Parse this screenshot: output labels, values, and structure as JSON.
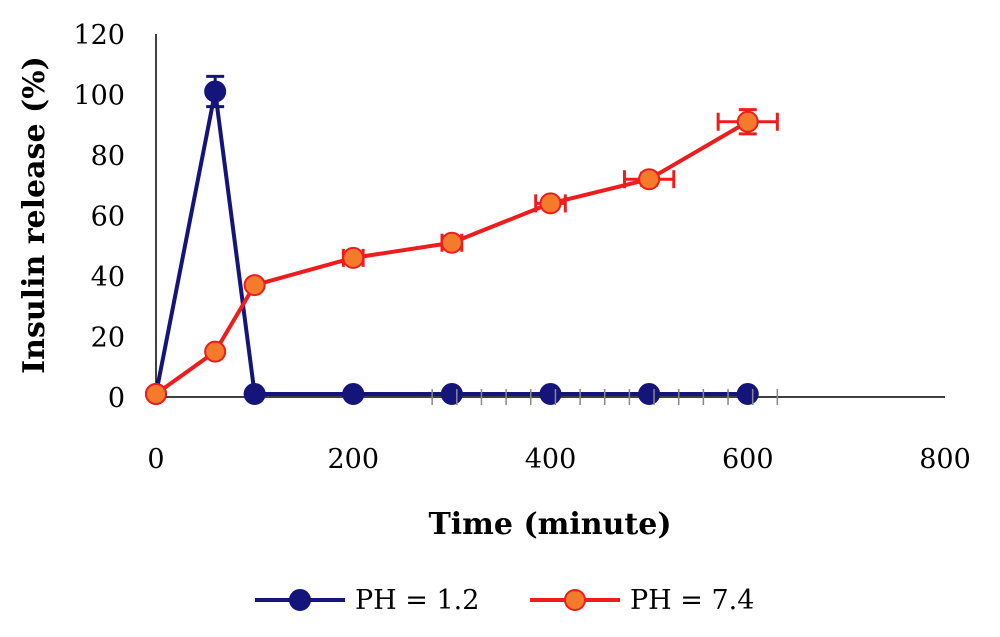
{
  "chart_data": {
    "type": "line",
    "xlabel": "Time (minute)",
    "ylabel": "Insulin release (%)",
    "xlim": [
      0,
      800
    ],
    "ylim": [
      0,
      120
    ],
    "xticks": [
      "0",
      "200",
      "400",
      "600",
      "800"
    ],
    "yticks": [
      "0",
      "20",
      "40",
      "60",
      "80",
      "100",
      "120"
    ],
    "grid": false,
    "legend_position": "bottom",
    "series": [
      {
        "name": "PH = 1.2",
        "color": "#14147A",
        "marker_fill": "#14147A",
        "x": [
          0,
          60,
          100,
          200,
          300,
          400,
          500,
          600
        ],
        "y": [
          1,
          101,
          1,
          1,
          1,
          1,
          1,
          1
        ],
        "y_err": [
          0,
          5,
          0,
          0,
          0,
          0,
          0,
          0
        ],
        "x_err": [
          0,
          0,
          0,
          0,
          0,
          0,
          0,
          0
        ]
      },
      {
        "name": "PH = 7.4",
        "color": "#EE1C1C",
        "marker_fill": "#F47A2C",
        "x": [
          0,
          60,
          100,
          200,
          300,
          400,
          500,
          600
        ],
        "y": [
          1,
          15,
          37,
          46,
          51,
          64,
          72,
          91
        ],
        "y_err": [
          0,
          0,
          0,
          0,
          0,
          1.5,
          2,
          4
        ],
        "x_err": [
          0,
          0,
          0,
          10,
          10,
          15,
          25,
          30
        ]
      }
    ]
  }
}
